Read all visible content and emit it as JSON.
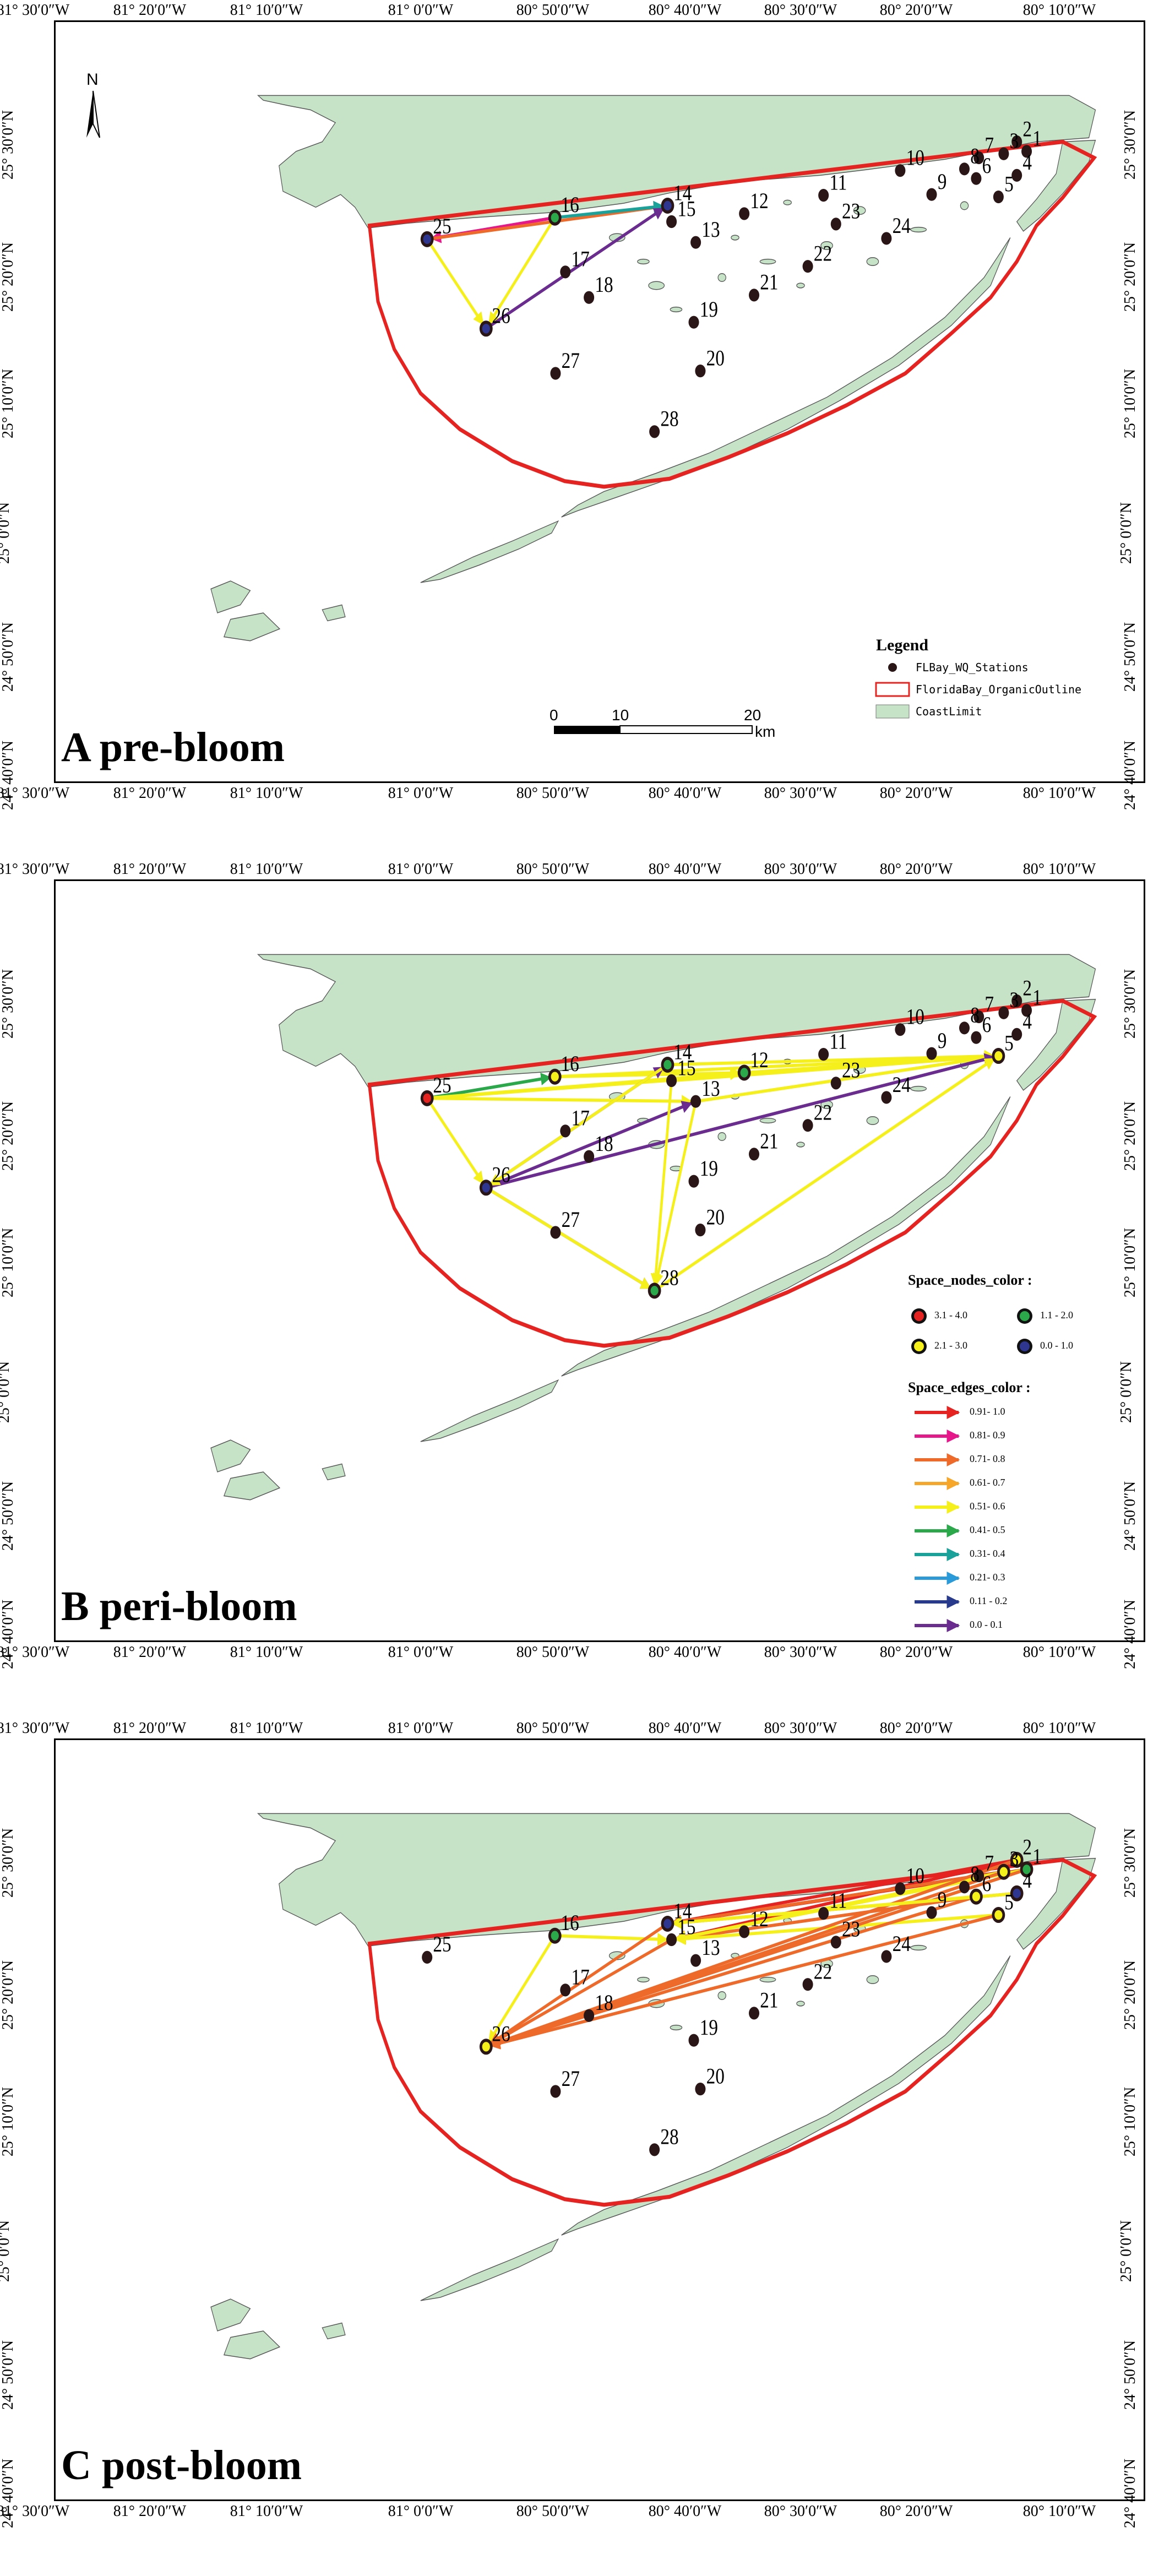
{
  "lon_labels": [
    "81° 30′0″W",
    "81° 20′0″W",
    "81° 10′0″W",
    "81° 0′0″W",
    "80° 50′0″W",
    "80° 40′0″W",
    "80° 30′0″W",
    "80° 20′0″W",
    "80° 10′0″W"
  ],
  "lat_labels": [
    "25° 30′0″N",
    "25° 20′0″N",
    "25° 10′0″N",
    "25° 0′0″N",
    "24° 50′0″N",
    "24° 40′0″N"
  ],
  "panels": [
    {
      "label": "A pre-bloom"
    },
    {
      "label": "B peri-bloom"
    },
    {
      "label": "C post-bloom"
    }
  ],
  "legend": {
    "title": "Legend",
    "stations": "FLBay_WQ_Stations",
    "outline": "FloridaBay_OrganicOutline",
    "coast": "CoastLimit"
  },
  "north_label": "N",
  "scale": {
    "ticks": [
      "0",
      "10",
      "20"
    ],
    "unit": "km"
  },
  "nodes_title": "Space_nodes_color :",
  "nodes_legend": [
    {
      "label": "3.1 - 4.0",
      "color": "#e52421"
    },
    {
      "label": "1.1 - 2.0",
      "color": "#2aa84a"
    },
    {
      "label": "2.1 - 3.0",
      "color": "#f5ef1b"
    },
    {
      "label": "0.0 - 1.0",
      "color": "#2e3690"
    }
  ],
  "edges_title": "Space_edges_color :",
  "edges_legend": [
    {
      "label": "0.91- 1.0",
      "color": "#e52421"
    },
    {
      "label": "0.81- 0.9",
      "color": "#e6178a"
    },
    {
      "label": "0.71- 0.8",
      "color": "#ee6a2a"
    },
    {
      "label": "0.61- 0.7",
      "color": "#f6a72a"
    },
    {
      "label": "0.51- 0.6",
      "color": "#f5ef1b"
    },
    {
      "label": "0.41- 0.5",
      "color": "#2aa84a"
    },
    {
      "label": "0.31- 0.4",
      "color": "#1aa19a"
    },
    {
      "label": "0.21- 0.3",
      "color": "#2a9bd8"
    },
    {
      "label": "0.11 - 0.2",
      "color": "#283a8c"
    },
    {
      "label": "0.0 - 0.1",
      "color": "#6a2c8e"
    }
  ],
  "stations": [
    {
      "id": "1",
      "label": "1"
    },
    {
      "id": "2",
      "label": "2"
    },
    {
      "id": "3",
      "label": "3"
    },
    {
      "id": "4",
      "label": "4"
    },
    {
      "id": "5",
      "label": "5"
    },
    {
      "id": "6",
      "label": "6"
    },
    {
      "id": "7",
      "label": "7"
    },
    {
      "id": "8",
      "label": "8"
    },
    {
      "id": "9",
      "label": "9"
    },
    {
      "id": "10",
      "label": "10"
    },
    {
      "id": "11",
      "label": "11"
    },
    {
      "id": "12",
      "label": "12"
    },
    {
      "id": "13",
      "label": "13"
    },
    {
      "id": "14",
      "label": "14"
    },
    {
      "id": "15",
      "label": "15"
    },
    {
      "id": "16",
      "label": "16"
    },
    {
      "id": "17",
      "label": "17"
    },
    {
      "id": "18",
      "label": "18"
    },
    {
      "id": "19",
      "label": "19"
    },
    {
      "id": "20",
      "label": "20"
    },
    {
      "id": "21",
      "label": "21"
    },
    {
      "id": "22",
      "label": "22"
    },
    {
      "id": "23",
      "label": "23"
    },
    {
      "id": "24",
      "label": "24"
    },
    {
      "id": "25",
      "label": "25"
    },
    {
      "id": "26",
      "label": "26"
    },
    {
      "id": "27",
      "label": "27"
    },
    {
      "id": "28",
      "label": "28"
    }
  ],
  "colors": {
    "land": "#c6e3c8",
    "outline": "#e52421",
    "station": "#2a1616"
  },
  "networks": {
    "A": {
      "nodes": {
        "25": "#2e3690",
        "16": "#2aa84a",
        "14": "#2e3690",
        "26": "#2e3690"
      },
      "edges": [
        {
          "from": "16",
          "to": "25",
          "color": "#e6178a"
        },
        {
          "from": "25",
          "to": "14",
          "color": "#ee6a2a"
        },
        {
          "from": "16",
          "to": "14",
          "color": "#1aa19a"
        },
        {
          "from": "25",
          "to": "26",
          "color": "#f5ef1b"
        },
        {
          "from": "16",
          "to": "26",
          "color": "#f5ef1b"
        },
        {
          "from": "26",
          "to": "14",
          "color": "#6a2c8e"
        }
      ]
    },
    "B": {
      "nodes": {
        "25": "#e52421",
        "16": "#f5ef1b",
        "14": "#2aa84a",
        "12": "#2aa84a",
        "5": "#f5ef1b",
        "28": "#2aa84a",
        "26": "#2e3690"
      },
      "edges": [
        {
          "from": "25",
          "to": "16",
          "color": "#2aa84a"
        },
        {
          "from": "25",
          "to": "12",
          "color": "#f5ef1b"
        },
        {
          "from": "25",
          "to": "5",
          "color": "#f5ef1b"
        },
        {
          "from": "25",
          "to": "13",
          "color": "#f5ef1b"
        },
        {
          "from": "16",
          "to": "5",
          "color": "#f5ef1b"
        },
        {
          "from": "16",
          "to": "12",
          "color": "#f5ef1b"
        },
        {
          "from": "14",
          "to": "5",
          "color": "#f5ef1b"
        },
        {
          "from": "15",
          "to": "5",
          "color": "#f5ef1b"
        },
        {
          "from": "12",
          "to": "5",
          "color": "#f5ef1b"
        },
        {
          "from": "13",
          "to": "5",
          "color": "#f5ef1b"
        },
        {
          "from": "26",
          "to": "14",
          "color": "#6a2c8e"
        },
        {
          "from": "26",
          "to": "13",
          "color": "#6a2c8e"
        },
        {
          "from": "26",
          "to": "5",
          "color": "#6a2c8e"
        },
        {
          "from": "26",
          "to": "28",
          "color": "#6a2c8e"
        },
        {
          "from": "25",
          "to": "26",
          "color": "#f5ef1b"
        },
        {
          "from": "26",
          "to": "28",
          "color": "#f5ef1b"
        },
        {
          "from": "28",
          "to": "5",
          "color": "#f5ef1b"
        },
        {
          "from": "15",
          "to": "28",
          "color": "#f5ef1b"
        },
        {
          "from": "13",
          "to": "28",
          "color": "#f5ef1b"
        },
        {
          "from": "14",
          "to": "26",
          "color": "#f5ef1b"
        }
      ]
    },
    "C": {
      "nodes": {
        "16": "#2aa84a",
        "14": "#2e3690",
        "26": "#f5ef1b",
        "2": "#f5ef1b",
        "1": "#2aa84a",
        "3": "#f5ef1b",
        "4": "#2e3690",
        "6": "#f5ef1b",
        "5": "#f5ef1b"
      },
      "edges": [
        {
          "from": "2",
          "to": "14",
          "color": "#e52421"
        },
        {
          "from": "1",
          "to": "14",
          "color": "#e52421"
        },
        {
          "from": "3",
          "to": "14",
          "color": "#e52421"
        },
        {
          "from": "2",
          "to": "15",
          "color": "#e52421"
        },
        {
          "from": "7",
          "to": "14",
          "color": "#ee6a2a"
        },
        {
          "from": "4",
          "to": "14",
          "color": "#ee6a2a"
        },
        {
          "from": "6",
          "to": "15",
          "color": "#ee6a2a"
        },
        {
          "from": "1",
          "to": "15",
          "color": "#f5ef1b"
        },
        {
          "from": "3",
          "to": "15",
          "color": "#f5ef1b"
        },
        {
          "from": "6",
          "to": "14",
          "color": "#f5ef1b"
        },
        {
          "from": "5",
          "to": "15",
          "color": "#f5ef1b"
        },
        {
          "from": "16",
          "to": "15",
          "color": "#f5ef1b"
        },
        {
          "from": "16",
          "to": "26",
          "color": "#f5ef1b"
        },
        {
          "from": "14",
          "to": "26",
          "color": "#ee6a2a"
        },
        {
          "from": "15",
          "to": "26",
          "color": "#ee6a2a"
        },
        {
          "from": "2",
          "to": "26",
          "color": "#ee6a2a"
        },
        {
          "from": "1",
          "to": "26",
          "color": "#ee6a2a"
        },
        {
          "from": "3",
          "to": "26",
          "color": "#ee6a2a"
        },
        {
          "from": "5",
          "to": "26",
          "color": "#ee6a2a"
        },
        {
          "from": "6",
          "to": "26",
          "color": "#ee6a2a"
        },
        {
          "from": "4",
          "to": "14",
          "color": "#f5ef1b"
        }
      ]
    }
  }
}
